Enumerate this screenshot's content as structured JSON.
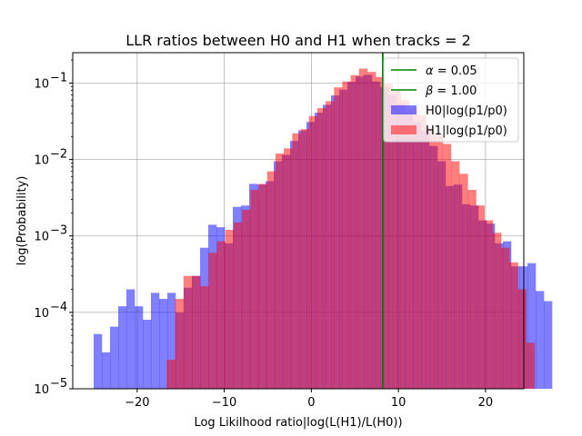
{
  "chart_data": {
    "type": "histogram",
    "title": "LLR ratios between H0 and H1 when tracks = 2",
    "xlabel": "Log Likilhood ratio|log(L(H1)/L(H0))",
    "ylabel": "log(Probability)",
    "xlim": [
      -27.4,
      24.4
    ],
    "ylim": [
      1e-05,
      0.25
    ],
    "yscale": "log",
    "grid": true,
    "legend_position": "upper-right",
    "x_ticks": [
      -20,
      -10,
      0,
      10,
      20
    ],
    "x_tick_labels": [
      "−20",
      "−10",
      "0",
      "10",
      "20"
    ],
    "y_ticks": [
      1e-05,
      0.0001,
      0.001,
      0.01,
      0.1
    ],
    "y_tick_labels": [
      "10",
      "10",
      "10",
      "10",
      "10"
    ],
    "y_tick_exponents": [
      "−5",
      "−4",
      "−3",
      "−2",
      "−1"
    ],
    "vlines": [
      {
        "x": 8.2,
        "color": "#008000"
      },
      {
        "x": 8.2,
        "color": "#008000"
      }
    ],
    "legend": [
      {
        "symbol": "α",
        "text": " = 0.05",
        "kind": "line",
        "color": "#008000"
      },
      {
        "symbol": "β",
        "text": " = 1.00",
        "kind": "line",
        "color": "#008000"
      },
      {
        "symbol": "",
        "text": "H0|log(p1/p0)",
        "kind": "patch",
        "color": "#0000ff",
        "opacity": 0.5
      },
      {
        "symbol": "",
        "text": "H1|log(p1/p0)",
        "kind": "patch",
        "color": "#ff0000",
        "opacity": 0.5
      }
    ],
    "series": [
      {
        "name": "H0|log(p1/p0)",
        "color": "#0000ff",
        "opacity": 0.5,
        "bin_start": -25.0,
        "bin_width": 0.94,
        "values": [
          5.2e-05,
          3e-05,
          6.5e-05,
          0.00012,
          0.0002,
          0.00012,
          8e-05,
          0.00018,
          0.00015,
          0.00018,
          0.0001,
          0.00021,
          0.0003,
          0.0007,
          0.0014,
          0.0013,
          0.0008,
          0.0024,
          0.0025,
          0.0048,
          0.0047,
          0.0052,
          0.0095,
          0.0115,
          0.0175,
          0.024,
          0.031,
          0.041,
          0.052,
          0.069,
          0.082,
          0.104,
          0.122,
          0.128,
          0.105,
          0.088,
          0.07,
          0.054,
          0.041,
          0.031,
          0.024,
          0.015,
          0.0095,
          0.0045,
          0.0047,
          0.0026,
          0.0025,
          0.0016,
          0.00145,
          0.0008,
          0.00085,
          0.0004,
          0.0004,
          0.00044,
          0.00019,
          0.00014
        ]
      },
      {
        "name": "H1|log(p1/p0)",
        "color": "#ff0000",
        "opacity": 0.5,
        "bin_start": -16.6,
        "bin_width": 0.96,
        "values": [
          2.4e-05,
          0.00015,
          0.0003,
          0.0003,
          0.00022,
          0.0006,
          0.00085,
          0.0012,
          0.0015,
          0.0022,
          0.004,
          0.0048,
          0.007,
          0.012,
          0.014,
          0.022,
          0.025,
          0.037,
          0.047,
          0.058,
          0.088,
          0.105,
          0.127,
          0.155,
          0.14,
          0.12,
          0.098,
          0.078,
          0.06,
          0.048,
          0.038,
          0.026,
          0.021,
          0.016,
          0.0095,
          0.0065,
          0.004,
          0.0025,
          0.0016,
          0.0011,
          0.0007,
          0.00045,
          0.0002,
          4e-05
        ]
      }
    ]
  }
}
